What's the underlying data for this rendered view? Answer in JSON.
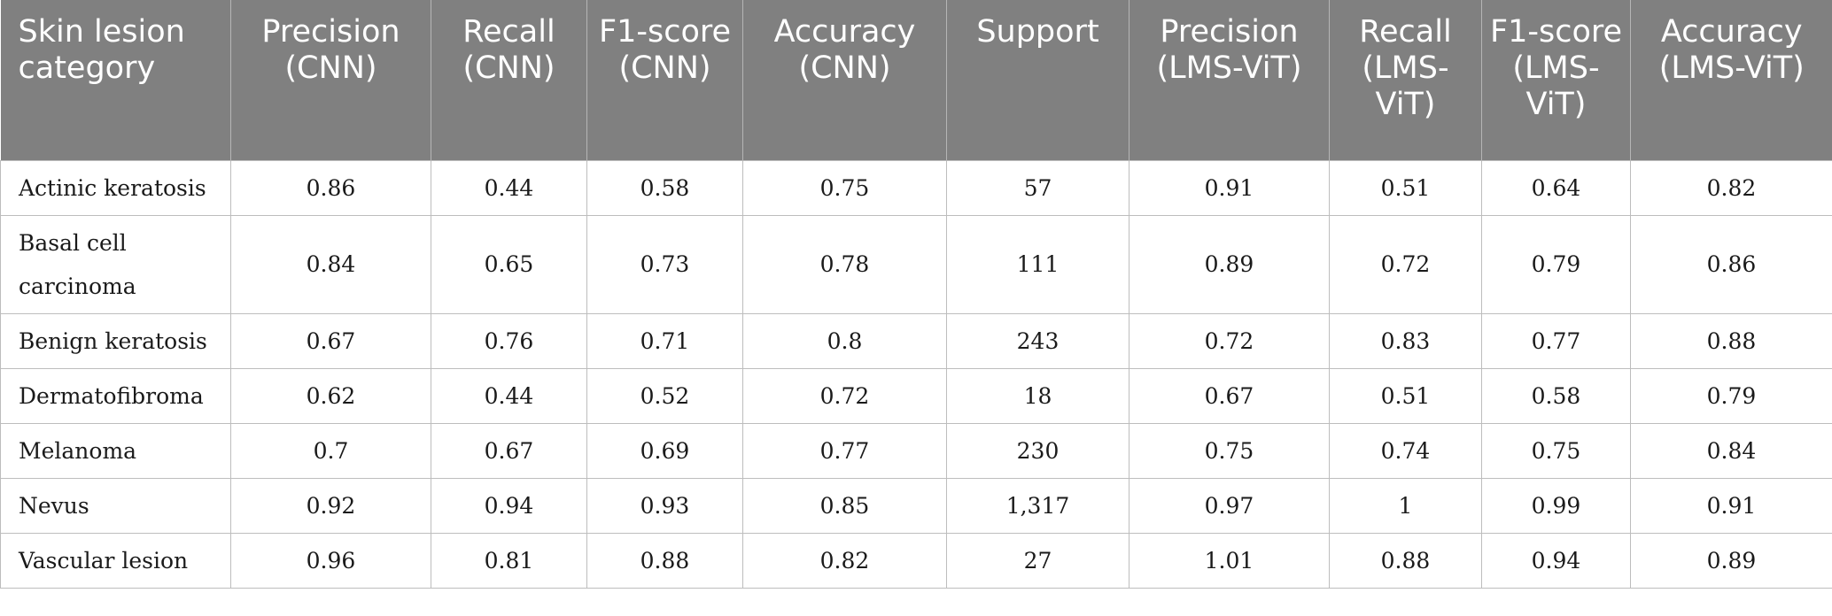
{
  "table": {
    "headers": [
      "Skin lesion category",
      "Precision (CNN)",
      "Recall (CNN)",
      "F1-score (CNN)",
      "Accuracy (CNN)",
      "Support",
      "Precision (LMS-ViT)",
      "Recall (LMS-ViT)",
      "F1-score (LMS-ViT)",
      "Accuracy (LMS-ViT)"
    ],
    "rows": [
      [
        "Actinic keratosis",
        "0.86",
        "0.44",
        "0.58",
        "0.75",
        "57",
        "0.91",
        "0.51",
        "0.64",
        "0.82"
      ],
      [
        "Basal cell carcinoma",
        "0.84",
        "0.65",
        "0.73",
        "0.78",
        "111",
        "0.89",
        "0.72",
        "0.79",
        "0.86"
      ],
      [
        "Benign keratosis",
        "0.67",
        "0.76",
        "0.71",
        "0.8",
        "243",
        "0.72",
        "0.83",
        "0.77",
        "0.88"
      ],
      [
        "Dermatofibroma",
        "0.62",
        "0.44",
        "0.52",
        "0.72",
        "18",
        "0.67",
        "0.51",
        "0.58",
        "0.79"
      ],
      [
        "Melanoma",
        "0.7",
        "0.67",
        "0.69",
        "0.77",
        "230",
        "0.75",
        "0.74",
        "0.75",
        "0.84"
      ],
      [
        "Nevus",
        "0.92",
        "0.94",
        "0.93",
        "0.85",
        "1,317",
        "0.97",
        "1",
        "0.99",
        "0.91"
      ],
      [
        "Vascular lesion",
        "0.96",
        "0.81",
        "0.88",
        "0.82",
        "27",
        "1.01",
        "0.88",
        "0.94",
        "0.89"
      ]
    ]
  }
}
